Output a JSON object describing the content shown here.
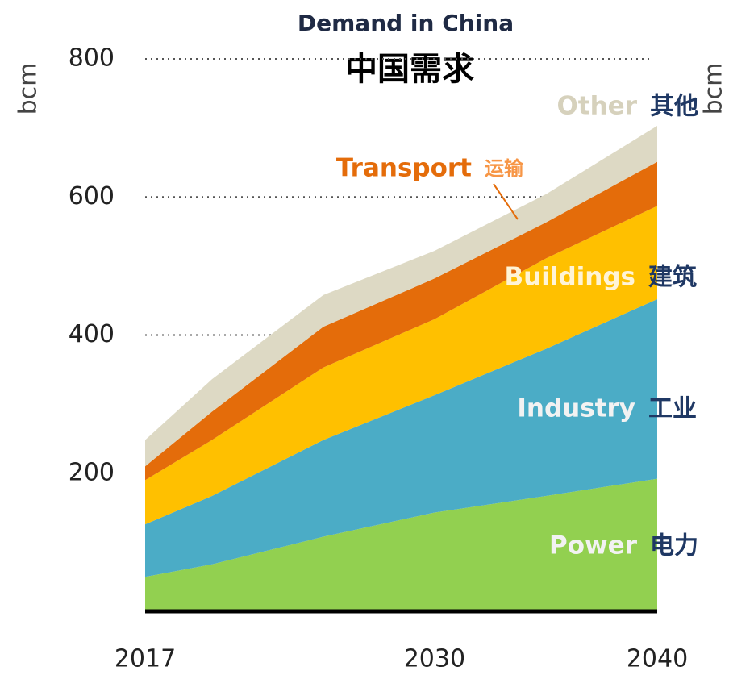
{
  "chart_data": {
    "type": "stacked_area",
    "title": "Demand in China",
    "subtitle": "中国需求",
    "y_label": "bcm",
    "y2_label": "bcm",
    "x": [
      2017,
      2020,
      2025,
      2030,
      2035,
      2040
    ],
    "xlim": [
      2017,
      2040
    ],
    "xticks": [
      2017,
      2030,
      2040
    ],
    "ylim": [
      0,
      800
    ],
    "yticks": [
      200,
      400,
      600,
      800
    ],
    "grid": true,
    "series": [
      {
        "name": "Power",
        "name_zh": "电力",
        "color": "#92d050",
        "label_color": "#f2f2f2",
        "label_zh_color": "#1f3864",
        "values": [
          50,
          68,
          108,
          143,
          167,
          192
        ]
      },
      {
        "name": "Industry",
        "name_zh": "工业",
        "color": "#4bacc6",
        "label_color": "#f2f2f2",
        "label_zh_color": "#1f3864",
        "values": [
          76,
          99,
          140,
          170,
          213,
          260
        ]
      },
      {
        "name": "Buildings",
        "name_zh": "建筑",
        "color": "#ffc000",
        "label_color": "#fff4d6",
        "label_zh_color": "#1f3864",
        "values": [
          64,
          81,
          105,
          110,
          131,
          135
        ]
      },
      {
        "name": "Transport",
        "name_zh": "运输",
        "color": "#e46c0a",
        "label_color": "#e46c0a",
        "label_zh_color": "#f79646",
        "values": [
          20,
          41,
          59,
          59,
          52,
          64
        ]
      },
      {
        "name": "Other",
        "name_zh": "其他",
        "color": "#ddd9c4",
        "label_color": "#d6d1bc",
        "label_zh_color": "#1f3864",
        "values": [
          38,
          47,
          46,
          40,
          41,
          52
        ]
      }
    ]
  }
}
